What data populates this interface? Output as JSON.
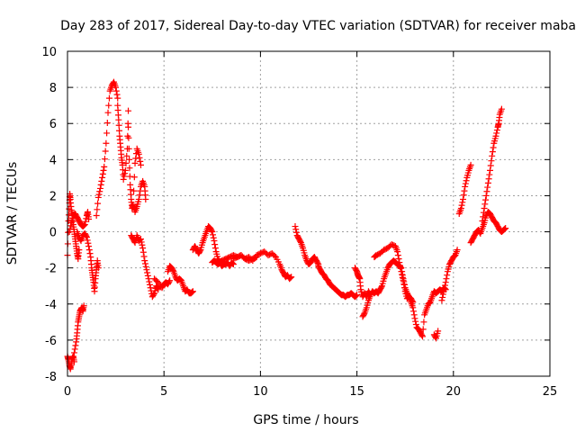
{
  "chart_data": {
    "type": "scatter",
    "title": "Day 283 of 2017, Sidereal Day-to-day VTEC variation (SDTVAR) for receiver maba",
    "xlabel": "GPS time / hours",
    "ylabel": "SDTVAR / TECUs",
    "xlim": [
      0,
      25
    ],
    "ylim": [
      -8,
      10
    ],
    "xticks": [
      0,
      5,
      10,
      15,
      20,
      25
    ],
    "yticks": [
      -8,
      -6,
      -4,
      -2,
      0,
      2,
      4,
      6,
      8,
      10
    ],
    "grid": true,
    "marker": "+",
    "colors": {
      "series": "#ff0000",
      "grid": "#a0a0a0",
      "axes": "#000000"
    },
    "series": [
      {
        "name": "SDTVAR",
        "segments": [
          {
            "x": [
              0.0,
              0.05,
              0.1,
              0.15,
              0.2,
              0.25,
              0.3,
              0.35
            ],
            "y": [
              -6.9,
              -7.1,
              -7.4,
              -7.6,
              -7.3,
              -7.0,
              -6.9,
              -7.2
            ]
          },
          {
            "x": [
              0.35,
              0.45,
              0.5,
              0.55,
              0.6,
              0.65,
              0.7,
              0.75,
              0.8,
              0.85
            ],
            "y": [
              -6.7,
              -6.1,
              -5.6,
              -5.0,
              -4.7,
              -4.4,
              -4.3,
              -4.2,
              -4.4,
              -4.1
            ]
          },
          {
            "x": [
              0.0,
              0.05,
              0.1,
              0.12,
              0.15,
              0.2,
              0.25,
              0.3,
              0.35,
              0.4,
              0.45,
              0.5,
              0.55,
              0.6
            ],
            "y": [
              -1.3,
              0.6,
              1.6,
              2.1,
              1.8,
              1.2,
              0.9,
              0.4,
              0.0,
              -0.4,
              -0.8,
              -1.2,
              -1.5,
              -1.0
            ]
          },
          {
            "x": [
              0.1,
              0.2,
              0.3,
              0.4,
              0.5,
              0.6,
              0.7,
              0.8,
              0.9,
              1.0,
              1.05,
              1.1
            ],
            "y": [
              0.0,
              0.5,
              0.9,
              1.0,
              0.8,
              0.6,
              0.4,
              0.3,
              0.4,
              0.9,
              1.1,
              0.7
            ]
          },
          {
            "x": [
              0.5,
              0.6,
              0.7,
              0.8,
              0.9,
              1.0,
              1.1,
              1.2,
              1.25,
              1.3,
              1.35,
              1.4,
              1.45,
              1.5,
              1.55,
              1.6
            ],
            "y": [
              0.0,
              -0.3,
              -0.5,
              -0.2,
              -0.1,
              -0.3,
              -0.8,
              -1.4,
              -2.0,
              -2.4,
              -2.8,
              -3.3,
              -2.6,
              -2.1,
              -1.6,
              -2.0
            ]
          },
          {
            "x": [
              1.5,
              1.6,
              1.7,
              1.8,
              1.9,
              2.0,
              2.1,
              2.2,
              2.3,
              2.4,
              2.5,
              2.6
            ],
            "y": [
              0.9,
              1.9,
              2.4,
              3.0,
              3.6,
              4.9,
              6.6,
              7.8,
              8.1,
              8.3,
              8.0,
              7.4
            ]
          },
          {
            "x": [
              2.6,
              2.65,
              2.7,
              2.75,
              2.8,
              2.85,
              2.9,
              3.0,
              3.1,
              3.15
            ],
            "y": [
              7.0,
              6.2,
              5.3,
              4.7,
              4.1,
              3.7,
              2.9,
              3.4,
              4.6,
              6.7
            ]
          },
          {
            "x": [
              3.15,
              3.2,
              3.25,
              3.3,
              3.35,
              3.4,
              3.5,
              3.6,
              3.7,
              3.8
            ],
            "y": [
              5.8,
              4.0,
              2.6,
              1.8,
              1.3,
              1.5,
              3.8,
              4.6,
              4.3,
              3.7
            ]
          },
          {
            "x": [
              3.3,
              3.4,
              3.5,
              3.6,
              3.7,
              3.8,
              3.9,
              4.0,
              4.1,
              4.2,
              4.3,
              4.4,
              4.5,
              4.6,
              4.7
            ],
            "y": [
              -0.2,
              -0.4,
              -0.6,
              -0.2,
              -0.5,
              -0.4,
              -0.9,
              -1.6,
              -2.1,
              -2.6,
              -3.1,
              -3.6,
              -3.4,
              -3.0,
              -3.2
            ]
          },
          {
            "x": [
              3.4,
              3.5,
              3.6,
              3.7,
              3.8,
              3.9,
              4.0,
              4.05
            ],
            "y": [
              1.5,
              1.1,
              1.4,
              1.8,
              2.5,
              2.8,
              2.5,
              1.8
            ]
          },
          {
            "x": [
              4.5,
              4.7,
              4.9,
              5.0,
              5.1,
              5.2,
              5.3
            ],
            "y": [
              -2.6,
              -2.8,
              -3.1,
              -2.9,
              -2.8,
              -2.9,
              -2.7
            ]
          },
          {
            "x": [
              5.2,
              5.3,
              5.4,
              5.5,
              5.6,
              5.7,
              5.8,
              5.9,
              6.0,
              6.1,
              6.2,
              6.3,
              6.4,
              6.5
            ],
            "y": [
              -2.2,
              -1.9,
              -2.0,
              -2.2,
              -2.5,
              -2.7,
              -2.6,
              -2.7,
              -3.0,
              -3.3,
              -3.2,
              -3.4,
              -3.4,
              -3.3
            ]
          },
          {
            "x": [
              6.5,
              6.6,
              6.7,
              6.8,
              6.9,
              7.0,
              7.1,
              7.2,
              7.3,
              7.4,
              7.5,
              7.6,
              7.7,
              7.8,
              7.9,
              8.0,
              8.1,
              8.2,
              8.3,
              8.4,
              8.5,
              8.6
            ],
            "y": [
              -1.0,
              -0.8,
              -1.0,
              -1.2,
              -1.0,
              -0.6,
              -0.3,
              0.0,
              0.3,
              0.2,
              0.0,
              -0.5,
              -1.1,
              -1.5,
              -1.7,
              -1.9,
              -1.8,
              -1.8,
              -1.7,
              -1.9,
              -1.7,
              -1.8
            ]
          },
          {
            "x": [
              7.5,
              7.6,
              7.7,
              7.8,
              7.9,
              8.0,
              8.2,
              8.4,
              8.6,
              8.8,
              9.0,
              9.2,
              9.4,
              9.6,
              9.8
            ],
            "y": [
              -1.7,
              -1.6,
              -1.7,
              -1.8,
              -1.7,
              -1.6,
              -1.5,
              -1.4,
              -1.3,
              -1.4,
              -1.3,
              -1.5,
              -1.6,
              -1.5,
              -1.4
            ]
          },
          {
            "x": [
              8.6,
              8.8,
              9.0,
              9.2,
              9.4,
              9.6,
              9.8,
              10.0,
              10.2,
              10.4,
              10.6,
              10.8,
              11.0,
              11.1,
              11.2,
              11.3,
              11.4,
              11.5,
              11.6
            ],
            "y": [
              -1.5,
              -1.4,
              -1.3,
              -1.5,
              -1.4,
              -1.6,
              -1.3,
              -1.2,
              -1.1,
              -1.3,
              -1.2,
              -1.4,
              -1.8,
              -2.1,
              -2.3,
              -2.5,
              -2.4,
              -2.6,
              -2.5
            ]
          },
          {
            "x": [
              11.8,
              11.9,
              12.0,
              12.1,
              12.2,
              12.3,
              12.4,
              12.5,
              12.6,
              12.7,
              12.8,
              12.9,
              13.0
            ],
            "y": [
              0.3,
              -0.2,
              -0.4,
              -0.6,
              -0.9,
              -1.3,
              -1.6,
              -1.8,
              -1.7,
              -1.5,
              -1.4,
              -1.6,
              -1.8
            ]
          },
          {
            "x": [
              13.0,
              13.1,
              13.2,
              13.3,
              13.4,
              13.5,
              13.6,
              13.7,
              13.8,
              13.9,
              14.0,
              14.1,
              14.2,
              14.3,
              14.4,
              14.5,
              14.6,
              14.7,
              14.8,
              14.9,
              15.0
            ],
            "y": [
              -1.9,
              -2.1,
              -2.3,
              -2.4,
              -2.6,
              -2.7,
              -2.9,
              -3.0,
              -3.1,
              -3.2,
              -3.3,
              -3.4,
              -3.5,
              -3.5,
              -3.6,
              -3.5,
              -3.5,
              -3.4,
              -3.5,
              -3.6,
              -3.5
            ]
          },
          {
            "x": [
              14.9,
              15.0,
              15.05,
              15.1,
              15.15,
              15.2,
              15.3,
              15.4,
              15.5,
              15.6,
              15.7,
              15.8,
              15.9,
              16.0,
              16.1,
              16.2,
              16.3,
              16.4,
              16.5,
              16.6,
              16.7,
              16.8,
              16.9,
              17.0,
              17.1,
              17.2,
              17.3,
              17.4,
              17.5,
              17.6,
              17.7,
              17.8,
              17.9
            ],
            "y": [
              -2.0,
              -2.2,
              -2.4,
              -2.5,
              -2.6,
              -3.2,
              -3.6,
              -3.4,
              -3.6,
              -3.3,
              -3.5,
              -3.3,
              -3.4,
              -3.3,
              -3.4,
              -3.2,
              -3.0,
              -2.6,
              -2.3,
              -2.0,
              -1.8,
              -1.7,
              -1.6,
              -1.7,
              -1.8,
              -1.9,
              -2.0,
              -2.6,
              -3.1,
              -3.4,
              -3.6,
              -3.7,
              -3.9
            ]
          },
          {
            "x": [
              15.3,
              15.4,
              15.5,
              15.6,
              15.7
            ],
            "y": [
              -4.7,
              -4.5,
              -4.2,
              -3.8,
              -3.5
            ]
          },
          {
            "x": [
              15.9,
              16.0,
              16.2,
              16.4,
              16.6,
              16.8,
              17.0,
              17.1,
              17.2,
              17.3,
              17.4,
              17.5,
              17.6,
              17.7,
              17.8,
              17.9,
              18.0,
              18.1,
              18.2,
              18.3,
              18.4,
              18.5,
              18.6,
              18.7,
              18.8,
              18.9,
              19.0,
              19.1,
              19.2,
              19.3,
              19.4,
              19.5,
              19.6
            ],
            "y": [
              -1.4,
              -1.3,
              -1.2,
              -1.0,
              -0.9,
              -0.7,
              -0.8,
              -1.1,
              -1.7,
              -2.2,
              -2.7,
              -3.3,
              -3.7,
              -3.6,
              -3.9,
              -4.2,
              -4.8,
              -5.3,
              -5.4,
              -5.6,
              -5.8,
              -4.6,
              -4.3,
              -4.0,
              -3.9,
              -3.6,
              -3.3,
              -3.4,
              -3.3,
              -3.2,
              -3.3,
              -3.1,
              -3.2
            ]
          },
          {
            "x": [
              19.0,
              19.1,
              19.2
            ],
            "y": [
              -5.7,
              -5.9,
              -5.5
            ]
          },
          {
            "x": [
              19.4,
              19.5,
              19.6,
              19.7,
              19.8,
              19.9,
              20.0,
              20.1,
              20.2
            ],
            "y": [
              -3.8,
              -3.3,
              -2.8,
              -2.2,
              -1.8,
              -1.6,
              -1.4,
              -1.3,
              -1.0
            ]
          },
          {
            "x": [
              20.3,
              20.4,
              20.5,
              20.6,
              20.7,
              20.8,
              20.9
            ],
            "y": [
              1.0,
              1.3,
              1.8,
              2.5,
              3.0,
              3.4,
              3.7
            ]
          },
          {
            "x": [
              20.9,
              21.0,
              21.1,
              21.2,
              21.3,
              21.4,
              21.5,
              21.6,
              21.7,
              21.8,
              21.9,
              22.0,
              22.1,
              22.2,
              22.3,
              22.4,
              22.5,
              22.6,
              22.7
            ],
            "y": [
              -0.6,
              -0.4,
              -0.2,
              0.0,
              0.1,
              -0.1,
              0.2,
              0.5,
              0.9,
              1.1,
              1.0,
              0.8,
              0.6,
              0.5,
              0.3,
              0.1,
              0.0,
              0.1,
              0.2
            ]
          },
          {
            "x": [
              21.5,
              21.6,
              21.7,
              21.8,
              21.9,
              22.0,
              22.1,
              22.2,
              22.3,
              22.35,
              22.4,
              22.5
            ],
            "y": [
              0.6,
              1.3,
              2.0,
              2.7,
              3.4,
              4.2,
              4.9,
              5.3,
              5.8,
              6.0,
              6.5,
              6.8
            ]
          }
        ]
      }
    ]
  }
}
